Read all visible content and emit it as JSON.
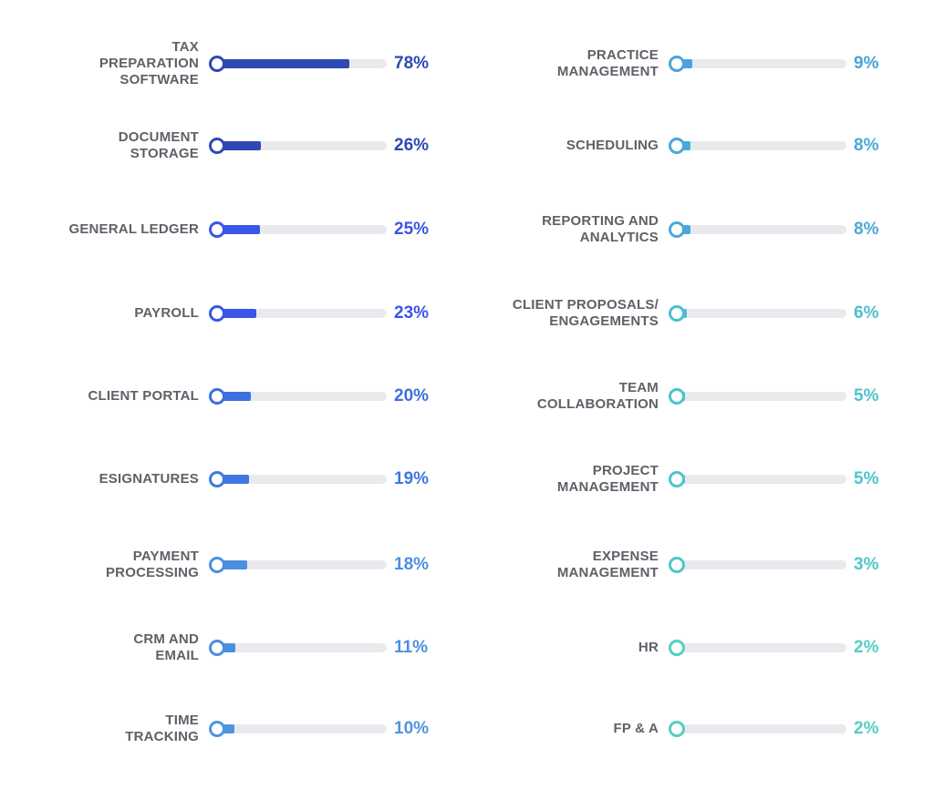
{
  "chart_data": {
    "type": "bar",
    "orientation": "horizontal",
    "value_format": "percent",
    "xlim": [
      0,
      100
    ],
    "grid": false,
    "columns": [
      {
        "items": [
          {
            "label": "TAX\nPREPARATION\nSOFTWARE",
            "value": 78,
            "value_label": "78%",
            "color": "#2d49b4"
          },
          {
            "label": "DOCUMENT\nSTORAGE",
            "value": 26,
            "value_label": "26%",
            "color": "#2d49b4"
          },
          {
            "label": "GENERAL LEDGER",
            "value": 25,
            "value_label": "25%",
            "color": "#3a56e8"
          },
          {
            "label": "PAYROLL",
            "value": 23,
            "value_label": "23%",
            "color": "#3a56e8"
          },
          {
            "label": "CLIENT PORTAL",
            "value": 20,
            "value_label": "20%",
            "color": "#3d6fe0"
          },
          {
            "label": "ESIGNATURES",
            "value": 19,
            "value_label": "19%",
            "color": "#3f78e0"
          },
          {
            "label": "PAYMENT\nPROCESSING",
            "value": 18,
            "value_label": "18%",
            "color": "#4a90e2"
          },
          {
            "label": "CRM AND\nEMAIL",
            "value": 11,
            "value_label": "11%",
            "color": "#4a8fe0"
          },
          {
            "label": "TIME\nTRACKING",
            "value": 10,
            "value_label": "10%",
            "color": "#4d95e0"
          }
        ]
      },
      {
        "items": [
          {
            "label": "PRACTICE\nMANAGEMENT",
            "value": 9,
            "value_label": "9%",
            "color": "#4aa3d9"
          },
          {
            "label": "SCHEDULING",
            "value": 8,
            "value_label": "8%",
            "color": "#4aa8d9"
          },
          {
            "label": "REPORTING AND\nANALYTICS",
            "value": 8,
            "value_label": "8%",
            "color": "#4aa8d6"
          },
          {
            "label": "CLIENT PROPOSALS/\nENGAGEMENTS",
            "value": 6,
            "value_label": "6%",
            "color": "#4cbfcf"
          },
          {
            "label": "TEAM\nCOLLABORATION",
            "value": 5,
            "value_label": "5%",
            "color": "#4cc3cc"
          },
          {
            "label": "PROJECT\nMANAGEMENT",
            "value": 5,
            "value_label": "5%",
            "color": "#4cc5cc"
          },
          {
            "label": "EXPENSE\nMANAGEMENT",
            "value": 3,
            "value_label": "3%",
            "color": "#4cc8c8"
          },
          {
            "label": "HR",
            "value": 2,
            "value_label": "2%",
            "color": "#52cfc2"
          },
          {
            "label": "FP & A",
            "value": 2,
            "value_label": "2%",
            "color": "#52cfc2"
          }
        ]
      }
    ]
  }
}
